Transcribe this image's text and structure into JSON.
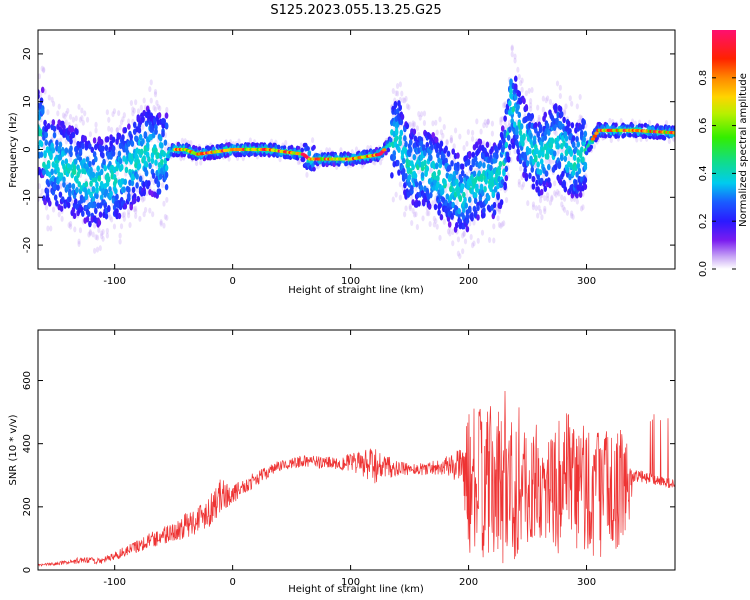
{
  "title": "S125.2023.055.13.25.G25",
  "chart_data": [
    {
      "type": "heatmap",
      "xlabel": "Height of straight line (km)",
      "ylabel": "Frequency (Hz)",
      "xlim": [
        -165,
        375
      ],
      "ylim": [
        -25,
        25
      ],
      "xticks": [
        -100,
        0,
        100,
        200,
        300
      ],
      "yticks": [
        -20,
        -10,
        0,
        10,
        20
      ],
      "colorbar": {
        "label": "Normalized spectral amplitude",
        "ticks": [
          0.0,
          0.2,
          0.4,
          0.6,
          0.8
        ],
        "range": [
          0,
          1
        ],
        "colormap": "white-purple-blue-cyan-green-yellow-orange-red-pink"
      },
      "ridge": [
        {
          "x": -160,
          "f": -2
        },
        {
          "x": -140,
          "f": -4
        },
        {
          "x": -120,
          "f": -7
        },
        {
          "x": -100,
          "f": -6
        },
        {
          "x": -85,
          "f": -3
        },
        {
          "x": -70,
          "f": 0
        },
        {
          "x": -60,
          "f": -2
        },
        {
          "x": -50,
          "f": 0
        },
        {
          "x": -40,
          "f": 0
        },
        {
          "x": -30,
          "f": -1
        },
        {
          "x": 0,
          "f": 0
        },
        {
          "x": 30,
          "f": 0
        },
        {
          "x": 60,
          "f": -1
        },
        {
          "x": 65,
          "f": -2
        },
        {
          "x": 100,
          "f": -2
        },
        {
          "x": 125,
          "f": -1
        },
        {
          "x": 140,
          "f": 3
        },
        {
          "x": 150,
          "f": -4
        },
        {
          "x": 165,
          "f": -4
        },
        {
          "x": 180,
          "f": -7
        },
        {
          "x": 195,
          "f": -10
        },
        {
          "x": 210,
          "f": -6
        },
        {
          "x": 220,
          "f": -7
        },
        {
          "x": 230,
          "f": -3
        },
        {
          "x": 236,
          "f": 10
        },
        {
          "x": 245,
          "f": 3
        },
        {
          "x": 260,
          "f": -2
        },
        {
          "x": 275,
          "f": 2
        },
        {
          "x": 290,
          "f": -3
        },
        {
          "x": 300,
          "f": 0
        },
        {
          "x": 310,
          "f": 4
        },
        {
          "x": 340,
          "f": 4
        },
        {
          "x": 375,
          "f": 3.5
        }
      ]
    },
    {
      "type": "line",
      "xlabel": "Height of straight line (km)",
      "ylabel": "SNR (10 * v/v)",
      "xlim": [
        -165,
        375
      ],
      "ylim": [
        0,
        760
      ],
      "xticks": [
        -100,
        0,
        100,
        200,
        300
      ],
      "yticks": [
        0,
        200,
        400,
        600
      ],
      "color": "#ee3333",
      "series": [
        {
          "name": "",
          "x": [
            -165,
            -150,
            -130,
            -110,
            -90,
            -70,
            -50,
            -30,
            -20,
            -10,
            0,
            20,
            40,
            60,
            80,
            100,
            120,
            140,
            160,
            180,
            195,
            200,
            220,
            240,
            260,
            280,
            300,
            320,
            335,
            340,
            360,
            375
          ],
          "y": [
            15,
            20,
            30,
            30,
            60,
            95,
            120,
            160,
            190,
            235,
            240,
            290,
            330,
            345,
            340,
            340,
            330,
            320,
            320,
            330,
            330,
            280,
            270,
            260,
            250,
            270,
            255,
            250,
            270,
            300,
            285,
            270
          ],
          "spread": [
            3,
            5,
            10,
            10,
            18,
            25,
            35,
            45,
            55,
            55,
            30,
            22,
            18,
            18,
            20,
            28,
            60,
            22,
            20,
            28,
            60,
            230,
            250,
            240,
            150,
            230,
            230,
            200,
            170,
            20,
            18,
            15
          ]
        }
      ]
    }
  ]
}
